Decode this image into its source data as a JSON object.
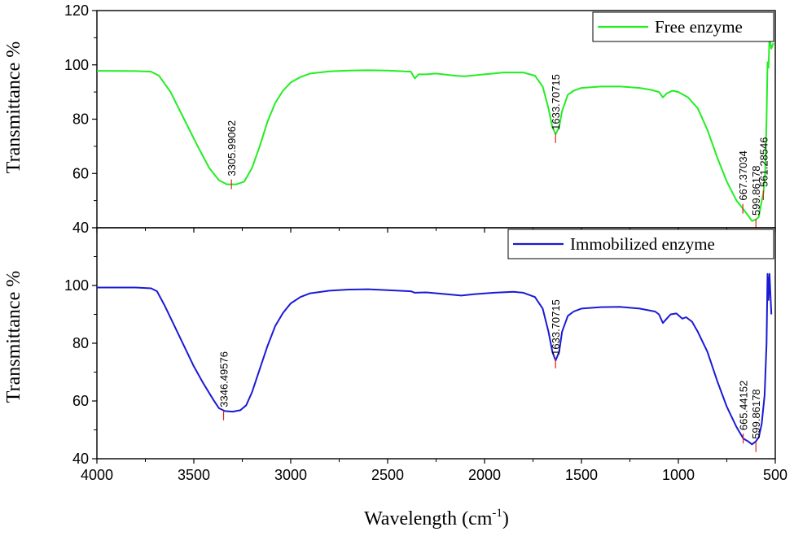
{
  "chart_data": [
    {
      "type": "line",
      "xlabel": "Wavelength (cm-1)",
      "xlabel_parts": {
        "main": "Wavelength (cm",
        "sup": "-1",
        "close": ")"
      },
      "ylabel": "Transmittance %",
      "xlim": [
        4000,
        500
      ],
      "ylim": [
        40,
        120
      ],
      "x_ticks": [
        "4000",
        "3500",
        "3000",
        "2500",
        "2000",
        "1500",
        "1000",
        "500"
      ],
      "y_ticks": [
        "40",
        "60",
        "80",
        "100",
        "120"
      ],
      "legend_position": "top-right",
      "series": [
        {
          "name": "Free enzyme",
          "color": "#22ee22",
          "points": [
            [
              4000,
              97.8
            ],
            [
              3800,
              97.7
            ],
            [
              3720,
              97.5
            ],
            [
              3680,
              96
            ],
            [
              3620,
              90
            ],
            [
              3550,
              80
            ],
            [
              3480,
              70
            ],
            [
              3420,
              62
            ],
            [
              3370,
              57.5
            ],
            [
              3330,
              56
            ],
            [
              3280,
              56
            ],
            [
              3240,
              57
            ],
            [
              3200,
              62
            ],
            [
              3160,
              70
            ],
            [
              3120,
              79
            ],
            [
              3080,
              86
            ],
            [
              3040,
              90.5
            ],
            [
              3000,
              93.5
            ],
            [
              2950,
              95.5
            ],
            [
              2900,
              96.8
            ],
            [
              2800,
              97.6
            ],
            [
              2700,
              97.9
            ],
            [
              2600,
              98
            ],
            [
              2500,
              97.9
            ],
            [
              2380,
              97.5
            ],
            [
              2360,
              95
            ],
            [
              2340,
              96.5
            ],
            [
              2300,
              96.5
            ],
            [
              2250,
              96.8
            ],
            [
              2150,
              96
            ],
            [
              2100,
              95.8
            ],
            [
              2000,
              96.5
            ],
            [
              1900,
              97.2
            ],
            [
              1800,
              97.2
            ],
            [
              1740,
              96
            ],
            [
              1700,
              92
            ],
            [
              1670,
              84
            ],
            [
              1650,
              77
            ],
            [
              1633,
              74.5
            ],
            [
              1615,
              77
            ],
            [
              1600,
              83
            ],
            [
              1570,
              89
            ],
            [
              1540,
              90.5
            ],
            [
              1500,
              91.5
            ],
            [
              1400,
              92
            ],
            [
              1300,
              92
            ],
            [
              1200,
              91.5
            ],
            [
              1140,
              90.8
            ],
            [
              1100,
              90
            ],
            [
              1080,
              88
            ],
            [
              1060,
              89.5
            ],
            [
              1030,
              90.5
            ],
            [
              1000,
              90
            ],
            [
              950,
              88
            ],
            [
              900,
              84
            ],
            [
              850,
              76
            ],
            [
              800,
              66
            ],
            [
              750,
              57
            ],
            [
              700,
              50
            ],
            [
              667,
              47
            ],
            [
              640,
              44.5
            ],
            [
              620,
              42.5
            ],
            [
              600,
              43
            ],
            [
              585,
              44
            ],
            [
              575,
              48
            ],
            [
              561,
              53
            ],
            [
              552,
              60
            ],
            [
              545,
              80
            ],
            [
              540,
              101
            ],
            [
              535,
              99
            ],
            [
              530,
              110
            ],
            [
              520,
              106
            ],
            [
              510,
              108
            ]
          ],
          "peaks": [
            {
              "x": 3305.99062,
              "y": 56,
              "label": "3305.99062"
            },
            {
              "x": 1633.70715,
              "y": 73,
              "label": "1633.70715"
            },
            {
              "x": 667.37034,
              "y": 47,
              "label": "667.37034"
            },
            {
              "x": 599.86178,
              "y": 41.5,
              "label": "599.86178"
            },
            {
              "x": 561.28546,
              "y": 52,
              "label": "561.28546"
            }
          ]
        },
        {
          "name": "Immobilized enzyme",
          "color": "#1a1ad6",
          "points": [
            [
              4000,
              99.3
            ],
            [
              3800,
              99.3
            ],
            [
              3720,
              99
            ],
            [
              3690,
              98
            ],
            [
              3650,
              93
            ],
            [
              3600,
              86
            ],
            [
              3550,
              79
            ],
            [
              3500,
              72
            ],
            [
              3450,
              66
            ],
            [
              3400,
              60.5
            ],
            [
              3370,
              57.5
            ],
            [
              3340,
              56.5
            ],
            [
              3300,
              56.3
            ],
            [
              3260,
              56.8
            ],
            [
              3230,
              58.5
            ],
            [
              3200,
              63
            ],
            [
              3160,
              71
            ],
            [
              3120,
              79
            ],
            [
              3080,
              86
            ],
            [
              3040,
              90.5
            ],
            [
              3000,
              93.8
            ],
            [
              2950,
              96
            ],
            [
              2900,
              97.3
            ],
            [
              2800,
              98.2
            ],
            [
              2700,
              98.6
            ],
            [
              2600,
              98.7
            ],
            [
              2500,
              98.4
            ],
            [
              2380,
              98
            ],
            [
              2360,
              97.5
            ],
            [
              2300,
              97.6
            ],
            [
              2200,
              97
            ],
            [
              2120,
              96.5
            ],
            [
              2050,
              97
            ],
            [
              1950,
              97.5
            ],
            [
              1850,
              97.8
            ],
            [
              1800,
              97.5
            ],
            [
              1740,
              96
            ],
            [
              1700,
              92
            ],
            [
              1670,
              84
            ],
            [
              1650,
              77
            ],
            [
              1633,
              74
            ],
            [
              1615,
              77
            ],
            [
              1600,
              84
            ],
            [
              1570,
              89.5
            ],
            [
              1540,
              91
            ],
            [
              1500,
              92
            ],
            [
              1400,
              92.5
            ],
            [
              1300,
              92.6
            ],
            [
              1200,
              92
            ],
            [
              1120,
              91
            ],
            [
              1100,
              90
            ],
            [
              1080,
              87
            ],
            [
              1060,
              88.5
            ],
            [
              1040,
              90
            ],
            [
              1010,
              90.3
            ],
            [
              980,
              88.5
            ],
            [
              960,
              89
            ],
            [
              930,
              87.5
            ],
            [
              900,
              84
            ],
            [
              850,
              77
            ],
            [
              800,
              67
            ],
            [
              750,
              58
            ],
            [
              700,
              51
            ],
            [
              665,
              47
            ],
            [
              640,
              46
            ],
            [
              620,
              45
            ],
            [
              600,
              46
            ],
            [
              585,
              47.5
            ],
            [
              570,
              52
            ],
            [
              555,
              62
            ],
            [
              545,
              80
            ],
            [
              540,
              104
            ],
            [
              535,
              95
            ],
            [
              530,
              104
            ],
            [
              520,
              90
            ]
          ],
          "peaks": [
            {
              "x": 3346.49576,
              "y": 55,
              "label": "3346.49576"
            },
            {
              "x": 1633.70715,
              "y": 73,
              "label": "1633.70715"
            },
            {
              "x": 665.44152,
              "y": 47,
              "label": "665.44152"
            },
            {
              "x": 599.86178,
              "y": 44,
              "label": "599.86178"
            }
          ]
        }
      ]
    }
  ]
}
